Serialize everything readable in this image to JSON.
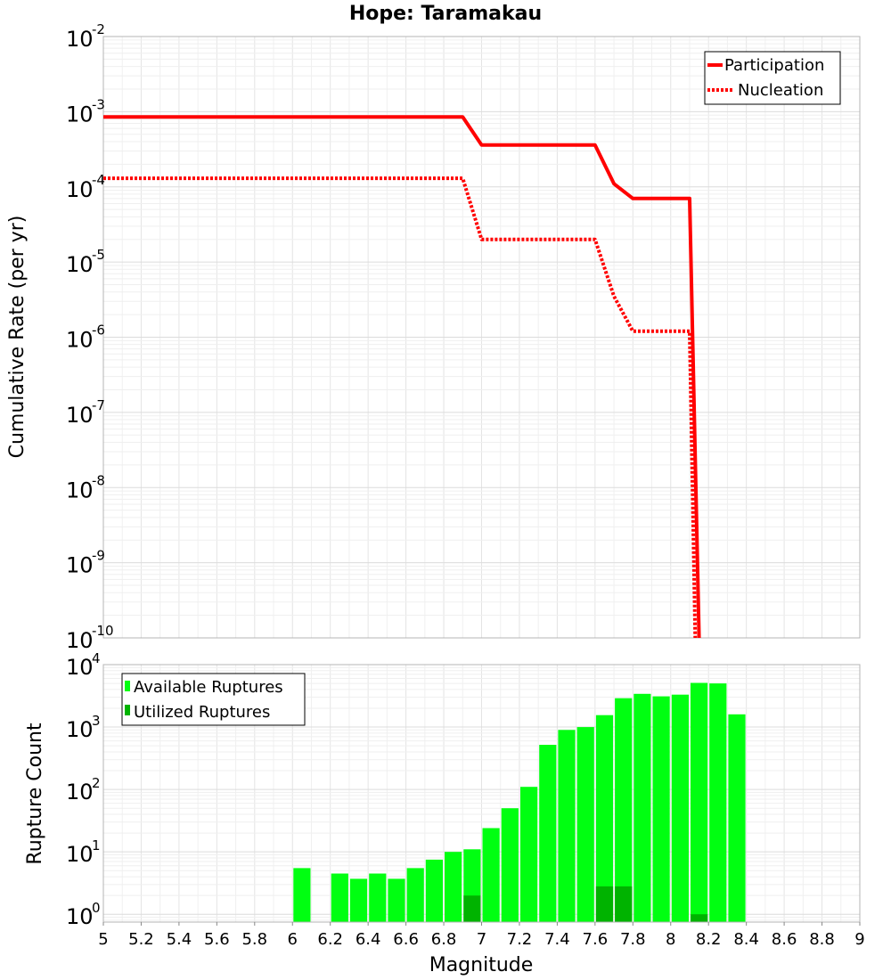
{
  "chart_data": [
    {
      "type": "line",
      "title": "Hope: Taramakau",
      "xlabel": "",
      "ylabel": "Cumulative Rate (per yr)",
      "xlim": [
        5,
        9
      ],
      "ylim": [
        1e-10,
        0.01
      ],
      "yscale": "log",
      "ytick_exponents": [
        -2,
        -3,
        -4,
        -5,
        -6,
        -7,
        -8,
        -9,
        -10
      ],
      "grid": true,
      "legend_position": "top-right",
      "series": [
        {
          "name": "Participation",
          "style": "solid",
          "color": "#ff0000",
          "x": [
            5.0,
            6.9,
            7.0,
            7.6,
            7.7,
            7.8,
            8.1,
            8.15
          ],
          "y": [
            0.00085,
            0.00085,
            0.00036,
            0.00036,
            0.00011,
            7e-05,
            7e-05,
            1e-10
          ]
        },
        {
          "name": "Nucleation",
          "style": "dotted",
          "color": "#ff0000",
          "x": [
            5.0,
            6.9,
            7.0,
            7.6,
            7.7,
            7.8,
            8.1,
            8.13
          ],
          "y": [
            0.00013,
            0.00013,
            2e-05,
            2e-05,
            3.5e-06,
            1.2e-06,
            1.2e-06,
            1e-10
          ]
        }
      ]
    },
    {
      "type": "bar",
      "xlabel": "Magnitude",
      "ylabel": "Rupture Count",
      "xlim": [
        5,
        9
      ],
      "ylim": [
        0.75,
        10000
      ],
      "yscale": "log",
      "ytick_exponents": [
        0,
        1,
        2,
        3,
        4
      ],
      "xticks": [
        "5",
        "5.2",
        "5.4",
        "5.6",
        "5.8",
        "6",
        "6.2",
        "6.4",
        "6.6",
        "6.8",
        "7",
        "7.2",
        "7.4",
        "7.6",
        "7.8",
        "8",
        "8.2",
        "8.4",
        "8.6",
        "8.8",
        "9"
      ],
      "grid": true,
      "legend_position": "top-left",
      "bin_width": 0.1,
      "series": [
        {
          "name": "Available Ruptures",
          "color": "#00ff11",
          "x": [
            6.05,
            6.25,
            6.35,
            6.45,
            6.55,
            6.65,
            6.75,
            6.85,
            6.95,
            7.05,
            7.15,
            7.25,
            7.35,
            7.45,
            7.55,
            7.65,
            7.75,
            7.85,
            7.95,
            8.05,
            8.15,
            8.25,
            8.35
          ],
          "values": [
            5.5,
            4.5,
            3.7,
            4.5,
            3.7,
            5.5,
            7.5,
            10,
            11,
            24,
            50,
            110,
            520,
            900,
            1000,
            1550,
            2900,
            3400,
            3100,
            3300,
            5100,
            5000,
            1600
          ]
        },
        {
          "name": "Utilized Ruptures",
          "color": "#00b300",
          "x": [
            6.95,
            7.65,
            7.75,
            8.15
          ],
          "values": [
            2,
            2.8,
            2.8,
            1
          ]
        }
      ]
    }
  ]
}
